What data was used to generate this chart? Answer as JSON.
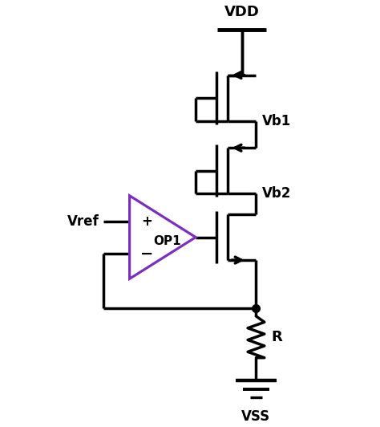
{
  "bg_color": "#ffffff",
  "line_color": "#000000",
  "op_amp_color": "#7b2fbe",
  "line_width": 2.5,
  "vdd_label": "VDD",
  "vb1_label": "Vb1",
  "vb2_label": "Vb2",
  "vref_label": "Vref",
  "op1_label": "OP1",
  "r_label": "R",
  "vss_label": "VSS",
  "plus_label": "+",
  "minus_label": "−"
}
